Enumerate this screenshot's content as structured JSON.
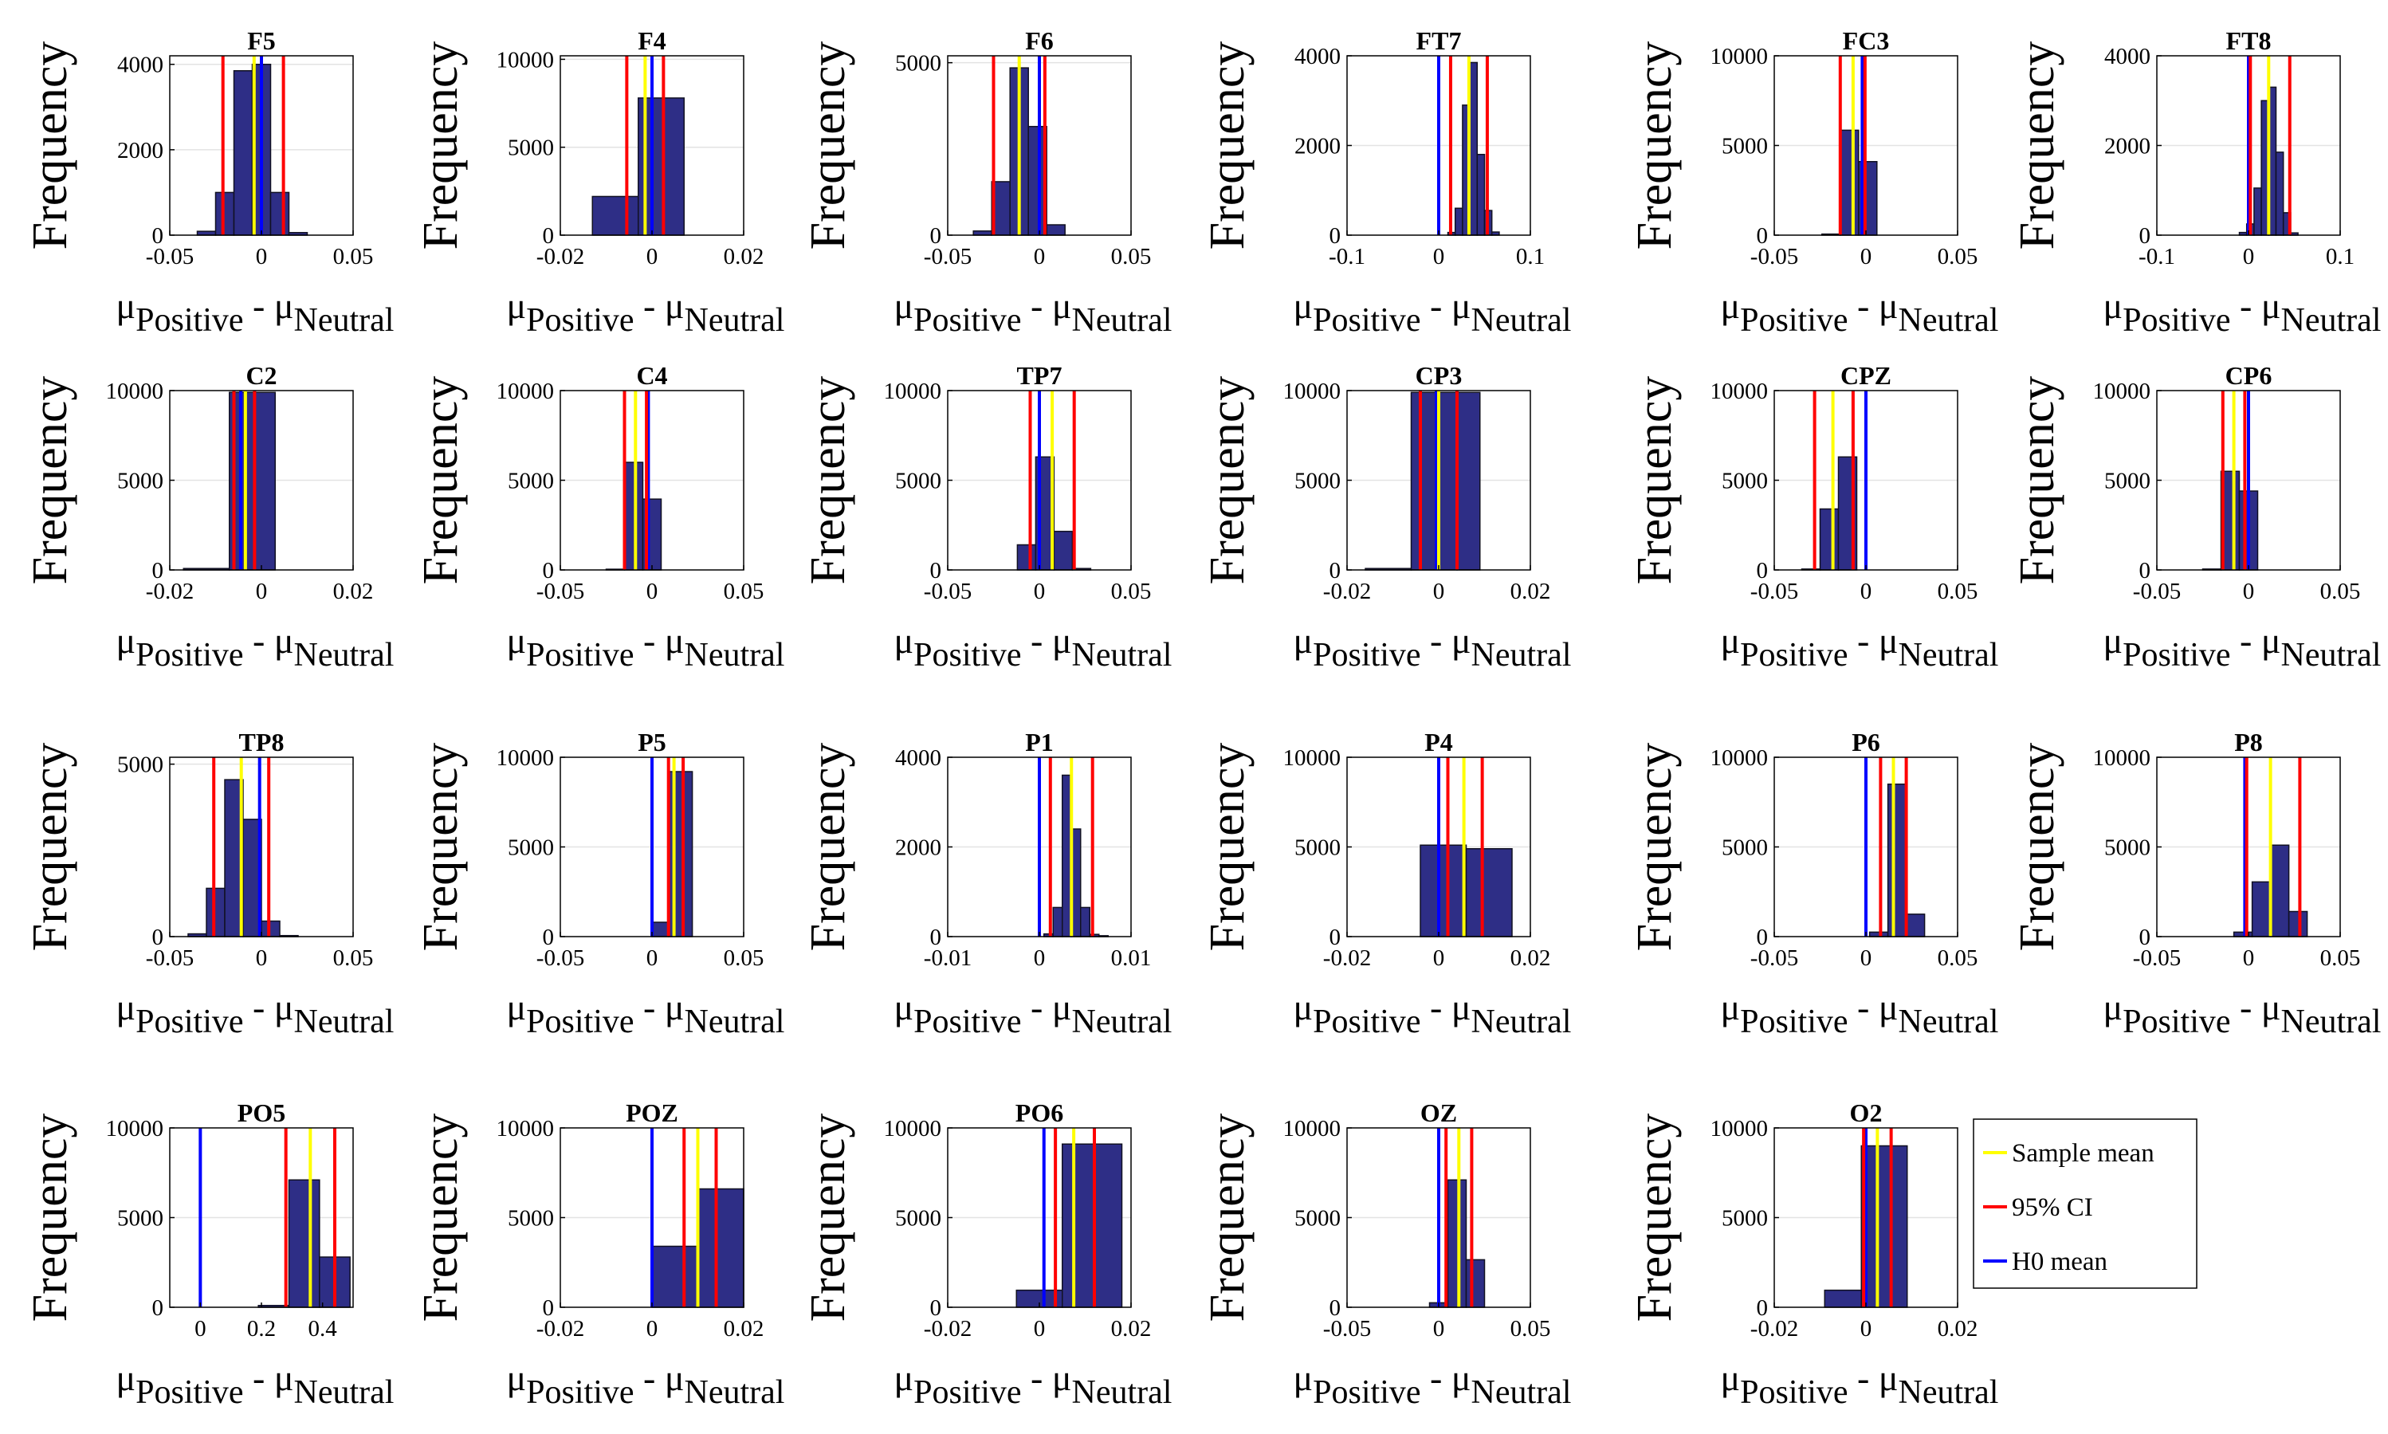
{
  "figure": {
    "ylabel": "Frequency",
    "xlabel": {
      "mu": "μ",
      "sub1": "Positive",
      "sep": " - ",
      "sub2": "Neutral"
    },
    "legend": [
      {
        "label": "Sample mean",
        "color": "#ffff00"
      },
      {
        "label": " 95% CI",
        "color": "#ff0000"
      },
      {
        "label": "H0 mean",
        "color": "#0000ff"
      }
    ],
    "colors": {
      "bar": "#2e2e86",
      "bar_edge": "#111122",
      "mean": "#ffff00",
      "ci": "#ff0000",
      "h0": "#0000ff",
      "grid": "#e3e3e3"
    }
  },
  "chart_data": [
    {
      "type": "bar",
      "title": "F5",
      "xlim": [
        -0.05,
        0.05
      ],
      "ylim": [
        0,
        4200
      ],
      "xticks": [
        -0.05,
        0,
        0.05
      ],
      "xticklabels": [
        "-0.05",
        "0",
        "0.05"
      ],
      "yticks": [
        0,
        2000,
        4000
      ],
      "yticklabels": [
        "0",
        "2000",
        "4000"
      ],
      "bin_edges": [
        -0.035,
        -0.025,
        -0.015,
        -0.005,
        0.005,
        0.015,
        0.025
      ],
      "counts": [
        90,
        1000,
        3850,
        4000,
        1000,
        60
      ],
      "mean": -0.004,
      "ci": [
        -0.021,
        0.012
      ],
      "h0": 0
    },
    {
      "type": "bar",
      "title": "F4",
      "xlim": [
        -0.02,
        0.02
      ],
      "ylim": [
        0,
        10200
      ],
      "xticks": [
        -0.02,
        0,
        0.02
      ],
      "xticklabels": [
        "-0.02",
        "0",
        "0.02"
      ],
      "yticks": [
        0,
        5000,
        10000
      ],
      "yticklabels": [
        "0",
        "5000",
        "10000"
      ],
      "bin_edges": [
        -0.013,
        -0.003,
        0.007
      ],
      "counts": [
        2200,
        7800
      ],
      "mean": -0.0015,
      "ci": [
        -0.0055,
        0.0025
      ],
      "h0": 0
    },
    {
      "type": "bar",
      "title": "F6",
      "xlim": [
        -0.05,
        0.05
      ],
      "ylim": [
        0,
        5200
      ],
      "xticks": [
        -0.05,
        0,
        0.05
      ],
      "xticklabels": [
        "-0.05",
        "0",
        "0.05"
      ],
      "yticks": [
        0,
        5000
      ],
      "yticklabels": [
        "0",
        "5000"
      ],
      "bin_edges": [
        -0.036,
        -0.026,
        -0.016,
        -0.006,
        0.004,
        0.014
      ],
      "counts": [
        120,
        1550,
        4850,
        3150,
        300
      ],
      "mean": -0.011,
      "ci": [
        -0.025,
        0.003
      ],
      "h0": 0
    },
    {
      "type": "bar",
      "title": "FT7",
      "xlim": [
        -0.1,
        0.1
      ],
      "ylim": [
        0,
        4000
      ],
      "xticks": [
        -0.1,
        0,
        0.1
      ],
      "xticklabels": [
        "-0.1",
        "0",
        "0.1"
      ],
      "yticks": [
        0,
        2000,
        4000
      ],
      "yticklabels": [
        "0",
        "2000",
        "4000"
      ],
      "bin_edges": [
        0.01,
        0.018,
        0.026,
        0.034,
        0.042,
        0.05,
        0.058,
        0.066
      ],
      "counts": [
        60,
        600,
        2900,
        3850,
        1800,
        550,
        70
      ],
      "mean": 0.033,
      "ci": [
        0.013,
        0.053
      ],
      "h0": 0
    },
    {
      "type": "bar",
      "title": "FC3",
      "xlim": [
        -0.05,
        0.05
      ],
      "ylim": [
        0,
        10000
      ],
      "xticks": [
        -0.05,
        0,
        0.05
      ],
      "xticklabels": [
        "-0.05",
        "0",
        "0.05"
      ],
      "yticks": [
        0,
        5000,
        10000
      ],
      "yticklabels": [
        "0",
        "5000",
        "10000"
      ],
      "bin_edges": [
        -0.024,
        -0.014,
        -0.004,
        0.006
      ],
      "counts": [
        60,
        5850,
        4100
      ],
      "mean": -0.007,
      "ci": [
        -0.014,
        -0.0005
      ],
      "h0": -0.002
    },
    {
      "type": "bar",
      "title": "FT8",
      "xlim": [
        -0.1,
        0.1
      ],
      "ylim": [
        0,
        4000
      ],
      "xticks": [
        -0.1,
        0,
        0.1
      ],
      "xticklabels": [
        "-0.1",
        "0",
        "0.1"
      ],
      "yticks": [
        0,
        2000,
        4000
      ],
      "yticklabels": [
        "0",
        "2000",
        "4000"
      ],
      "bin_edges": [
        -0.01,
        -0.002,
        0.006,
        0.014,
        0.022,
        0.03,
        0.038,
        0.046,
        0.054
      ],
      "counts": [
        60,
        250,
        1050,
        3000,
        3300,
        1850,
        500,
        50
      ],
      "mean": 0.022,
      "ci": [
        0.002,
        0.045
      ],
      "h0": 0
    },
    {
      "type": "bar",
      "title": "C2",
      "xlim": [
        -0.02,
        0.02
      ],
      "ylim": [
        0,
        10000
      ],
      "xticks": [
        -0.02,
        0,
        0.02
      ],
      "xticklabels": [
        "-0.02",
        "0",
        "0.02"
      ],
      "yticks": [
        0,
        5000,
        10000
      ],
      "yticklabels": [
        "0",
        "5000",
        "10000"
      ],
      "bin_edges": [
        -0.017,
        -0.007,
        0.003
      ],
      "counts": [
        80,
        9900
      ],
      "mean": -0.0035,
      "ci": [
        -0.006,
        -0.0015
      ],
      "h0": -0.0045
    },
    {
      "type": "bar",
      "title": "C4",
      "xlim": [
        -0.05,
        0.05
      ],
      "ylim": [
        0,
        10000
      ],
      "xticks": [
        -0.05,
        0,
        0.05
      ],
      "xticklabels": [
        "-0.05",
        "0",
        "0.05"
      ],
      "yticks": [
        0,
        5000,
        10000
      ],
      "yticklabels": [
        "0",
        "5000",
        "10000"
      ],
      "bin_edges": [
        -0.025,
        -0.015,
        -0.005,
        0.005
      ],
      "counts": [
        40,
        6000,
        3950
      ],
      "mean": -0.009,
      "ci": [
        -0.015,
        -0.003
      ],
      "h0": -0.002
    },
    {
      "type": "bar",
      "title": "TP7",
      "xlim": [
        -0.05,
        0.05
      ],
      "ylim": [
        0,
        10000
      ],
      "xticks": [
        -0.05,
        0,
        0.05
      ],
      "xticklabels": [
        "-0.05",
        "0",
        "0.05"
      ],
      "yticks": [
        0,
        5000,
        10000
      ],
      "yticklabels": [
        "0",
        "5000",
        "10000"
      ],
      "bin_edges": [
        -0.012,
        -0.002,
        0.008,
        0.018,
        0.028
      ],
      "counts": [
        1400,
        6300,
        2150,
        80
      ],
      "mean": 0.007,
      "ci": [
        -0.005,
        0.019
      ],
      "h0": 0
    },
    {
      "type": "bar",
      "title": "CP3",
      "xlim": [
        -0.02,
        0.02
      ],
      "ylim": [
        0,
        10000
      ],
      "xticks": [
        -0.02,
        0,
        0.02
      ],
      "xticklabels": [
        "-0.02",
        "0",
        "0.02"
      ],
      "yticks": [
        0,
        5000,
        10000
      ],
      "yticklabels": [
        "0",
        "5000",
        "10000"
      ],
      "bin_edges": [
        -0.016,
        -0.006,
        0.004,
        0.009
      ],
      "counts": [
        80,
        9900,
        9900
      ],
      "mean": 0,
      "ci": [
        -0.004,
        0.004
      ],
      "h0": -0.0005
    },
    {
      "type": "bar",
      "title": "CPZ",
      "xlim": [
        -0.05,
        0.05
      ],
      "ylim": [
        0,
        10000
      ],
      "xticks": [
        -0.05,
        0,
        0.05
      ],
      "xticklabels": [
        "-0.05",
        "0",
        "0.05"
      ],
      "yticks": [
        0,
        5000,
        10000
      ],
      "yticklabels": [
        "0",
        "5000",
        "10000"
      ],
      "bin_edges": [
        -0.035,
        -0.025,
        -0.015,
        -0.005
      ],
      "counts": [
        50,
        3400,
        6300
      ],
      "mean": -0.018,
      "ci": [
        -0.028,
        -0.007
      ],
      "h0": 0
    },
    {
      "type": "bar",
      "title": "CP6",
      "xlim": [
        -0.05,
        0.05
      ],
      "ylim": [
        0,
        10000
      ],
      "xticks": [
        -0.05,
        0,
        0.05
      ],
      "xticklabels": [
        "-0.05",
        "0",
        "0.05"
      ],
      "yticks": [
        0,
        5000,
        10000
      ],
      "yticklabels": [
        "0",
        "5000",
        "10000"
      ],
      "bin_edges": [
        -0.025,
        -0.015,
        -0.005,
        0.005
      ],
      "counts": [
        50,
        5500,
        4400
      ],
      "mean": -0.008,
      "ci": [
        -0.014,
        -0.002
      ],
      "h0": 0
    },
    {
      "type": "bar",
      "title": "TP8",
      "xlim": [
        -0.05,
        0.05
      ],
      "ylim": [
        0,
        5200
      ],
      "xticks": [
        -0.05,
        0,
        0.05
      ],
      "xticklabels": [
        "-0.05",
        "0",
        "0.05"
      ],
      "yticks": [
        0,
        5000
      ],
      "yticklabels": [
        "0",
        "5000"
      ],
      "bin_edges": [
        -0.04,
        -0.03,
        -0.02,
        -0.01,
        0,
        0.01,
        0.02
      ],
      "counts": [
        80,
        1400,
        4550,
        3400,
        450,
        30
      ],
      "mean": -0.011,
      "ci": [
        -0.026,
        0.004
      ],
      "h0": -0.001
    },
    {
      "type": "bar",
      "title": "P5",
      "xlim": [
        -0.05,
        0.05
      ],
      "ylim": [
        0,
        10000
      ],
      "xticks": [
        -0.05,
        0,
        0.05
      ],
      "xticklabels": [
        "-0.05",
        "0",
        "0.05"
      ],
      "yticks": [
        0,
        5000,
        10000
      ],
      "yticklabels": [
        "0",
        "5000",
        "10000"
      ],
      "bin_edges": [
        0,
        0.009,
        0.022
      ],
      "counts": [
        800,
        9200
      ],
      "mean": 0.012,
      "ci": [
        0.009,
        0.017
      ],
      "h0": 0
    },
    {
      "type": "bar",
      "title": "P1",
      "xlim": [
        -0.01,
        0.01
      ],
      "ylim": [
        0,
        4000
      ],
      "xticks": [
        -0.01,
        0,
        0.01
      ],
      "xticklabels": [
        "-0.01",
        "0",
        "0.01"
      ],
      "yticks": [
        0,
        2000,
        4000
      ],
      "yticklabels": [
        "0",
        "2000",
        "4000"
      ],
      "bin_edges": [
        0.0005,
        0.0015,
        0.0025,
        0.0035,
        0.0045,
        0.0055,
        0.0065,
        0.0075
      ],
      "counts": [
        60,
        650,
        3600,
        2400,
        650,
        50,
        20
      ],
      "mean": 0.0035,
      "ci": [
        0.0012,
        0.0058
      ],
      "h0": 0
    },
    {
      "type": "bar",
      "title": "P4",
      "xlim": [
        -0.02,
        0.02
      ],
      "ylim": [
        0,
        10000
      ],
      "xticks": [
        -0.02,
        0,
        0.02
      ],
      "xticklabels": [
        "-0.02",
        "0",
        "0.02"
      ],
      "yticks": [
        0,
        5000,
        10000
      ],
      "yticklabels": [
        "0",
        "5000",
        "10000"
      ],
      "bin_edges": [
        -0.004,
        0.006,
        0.016
      ],
      "counts": [
        5100,
        4900
      ],
      "mean": 0.0055,
      "ci": [
        0.002,
        0.0095
      ],
      "h0": 0
    },
    {
      "type": "bar",
      "title": "P6",
      "xlim": [
        -0.05,
        0.05
      ],
      "ylim": [
        0,
        10000
      ],
      "xticks": [
        -0.05,
        0,
        0.05
      ],
      "xticklabels": [
        "-0.05",
        "0",
        "0.05"
      ],
      "yticks": [
        0,
        5000,
        10000
      ],
      "yticklabels": [
        "0",
        "5000",
        "10000"
      ],
      "bin_edges": [
        0.002,
        0.012,
        0.022,
        0.032
      ],
      "counts": [
        250,
        8500,
        1250
      ],
      "mean": 0.015,
      "ci": [
        0.008,
        0.022
      ],
      "h0": 0
    },
    {
      "type": "bar",
      "title": "P8",
      "xlim": [
        -0.05,
        0.05
      ],
      "ylim": [
        0,
        10000
      ],
      "xticks": [
        -0.05,
        0,
        0.05
      ],
      "xticklabels": [
        "-0.05",
        "0",
        "0.05"
      ],
      "yticks": [
        0,
        5000,
        10000
      ],
      "yticklabels": [
        "0",
        "5000",
        "10000"
      ],
      "bin_edges": [
        -0.008,
        0.002,
        0.012,
        0.022,
        0.032
      ],
      "counts": [
        250,
        3050,
        5100,
        1400
      ],
      "mean": 0.012,
      "ci": [
        -0.001,
        0.028
      ],
      "h0": -0.002
    },
    {
      "type": "bar",
      "title": "PO5",
      "xlim": [
        -0.1,
        0.5
      ],
      "ylim": [
        0,
        10000
      ],
      "xticks": [
        0,
        0.2,
        0.4
      ],
      "xticklabels": [
        "0",
        "0.2",
        "0.4"
      ],
      "yticks": [
        0,
        5000,
        10000
      ],
      "yticklabels": [
        "0",
        "5000",
        "10000"
      ],
      "bin_edges": [
        0.19,
        0.29,
        0.39,
        0.49
      ],
      "counts": [
        100,
        7100,
        2800
      ],
      "mean": 0.36,
      "ci": [
        0.28,
        0.44
      ],
      "h0": 0
    },
    {
      "type": "bar",
      "title": "POZ",
      "xlim": [
        -0.02,
        0.02
      ],
      "ylim": [
        0,
        10000
      ],
      "xticks": [
        -0.02,
        0,
        0.02
      ],
      "xticklabels": [
        "-0.02",
        "0",
        "0.02"
      ],
      "yticks": [
        0,
        5000,
        10000
      ],
      "yticklabels": [
        "0",
        "5000",
        "10000"
      ],
      "bin_edges": [
        0,
        0.01,
        0.02
      ],
      "counts": [
        3400,
        6600
      ],
      "mean": 0.01,
      "ci": [
        0.007,
        0.014
      ],
      "h0": 0
    },
    {
      "type": "bar",
      "title": "PO6",
      "xlim": [
        -0.02,
        0.02
      ],
      "ylim": [
        0,
        10000
      ],
      "xticks": [
        -0.02,
        0,
        0.02
      ],
      "xticklabels": [
        "-0.02",
        "0",
        "0.02"
      ],
      "yticks": [
        0,
        5000,
        10000
      ],
      "yticklabels": [
        "0",
        "5000",
        "10000"
      ],
      "bin_edges": [
        -0.005,
        0.005,
        0.018
      ],
      "counts": [
        950,
        9100
      ],
      "mean": 0.0075,
      "ci": [
        0.0035,
        0.012
      ],
      "h0": 0.001
    },
    {
      "type": "bar",
      "title": "OZ",
      "xlim": [
        -0.05,
        0.05
      ],
      "ylim": [
        0,
        10000
      ],
      "xticks": [
        -0.05,
        0,
        0.05
      ],
      "xticklabels": [
        "-0.05",
        "0",
        "0.05"
      ],
      "yticks": [
        0,
        5000,
        10000
      ],
      "yticklabels": [
        "0",
        "5000",
        "10000"
      ],
      "bin_edges": [
        -0.005,
        0.005,
        0.015,
        0.025
      ],
      "counts": [
        250,
        7100,
        2650
      ],
      "mean": 0.011,
      "ci": [
        0.004,
        0.018
      ],
      "h0": 0
    },
    {
      "type": "bar",
      "title": "O2",
      "xlim": [
        -0.02,
        0.02
      ],
      "ylim": [
        0,
        10000
      ],
      "xticks": [
        -0.02,
        0,
        0.02
      ],
      "xticklabels": [
        "-0.02",
        "0",
        "0.02"
      ],
      "yticks": [
        0,
        5000,
        10000
      ],
      "yticklabels": [
        "0",
        "5000",
        "10000"
      ],
      "bin_edges": [
        -0.009,
        -0.001,
        0.009
      ],
      "counts": [
        950,
        9000
      ],
      "mean": 0.0025,
      "ci": [
        -0.0005,
        0.0055
      ],
      "h0": 0
    }
  ]
}
